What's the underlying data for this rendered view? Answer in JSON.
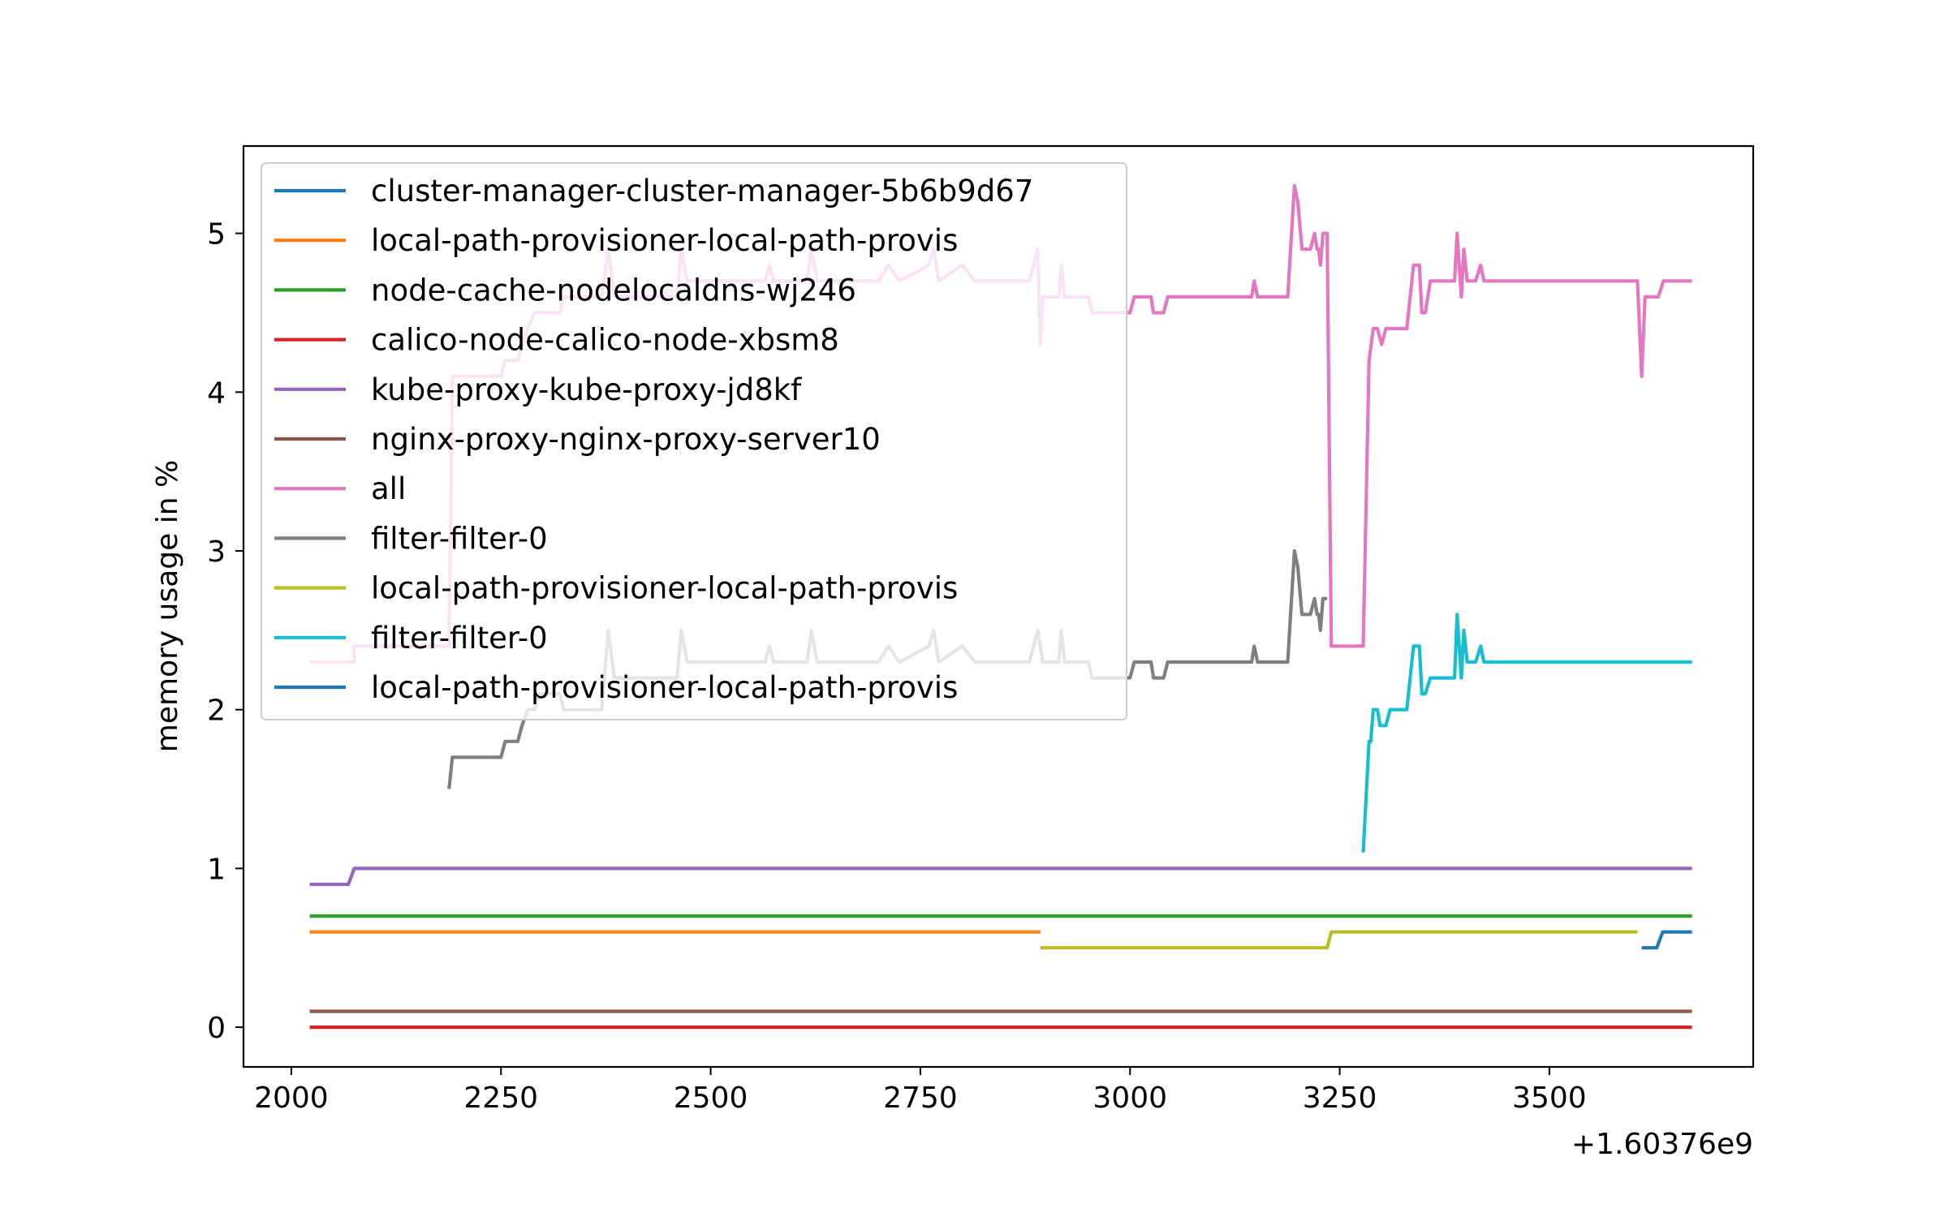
{
  "chart_data": {
    "type": "line",
    "title": "",
    "xlabel": "",
    "ylabel": "memory usage in %",
    "x_offset_label": "+1.60376e9",
    "xlim": [
      1943,
      3743
    ],
    "ylim": [
      -0.25,
      5.55
    ],
    "x_ticks": [
      {
        "value": 2000,
        "label": "2000"
      },
      {
        "value": 2250,
        "label": "2250"
      },
      {
        "value": 2500,
        "label": "2500"
      },
      {
        "value": 2750,
        "label": "2750"
      },
      {
        "value": 3000,
        "label": "3000"
      },
      {
        "value": 3250,
        "label": "3250"
      },
      {
        "value": 3500,
        "label": "3500"
      }
    ],
    "y_ticks": [
      {
        "value": 0,
        "label": "0"
      },
      {
        "value": 1,
        "label": "1"
      },
      {
        "value": 2,
        "label": "2"
      },
      {
        "value": 3,
        "label": "3"
      },
      {
        "value": 4,
        "label": "4"
      },
      {
        "value": 5,
        "label": "5"
      }
    ],
    "grid": false,
    "legend_position": "upper-left",
    "series": [
      {
        "name": "cluster-manager-cluster-manager-5b6b9d67",
        "color": "#1f77b4",
        "points": []
      },
      {
        "name": "local-path-provisioner-local-path-provis",
        "color": "#ff7f0e",
        "points": [
          [
            2022,
            0.6
          ],
          [
            2893,
            0.6
          ]
        ]
      },
      {
        "name": "node-cache-nodelocaldns-wj246",
        "color": "#2ca02c",
        "points": [
          [
            2022,
            0.7
          ],
          [
            3670,
            0.7
          ]
        ]
      },
      {
        "name": "calico-node-calico-node-xbsm8",
        "color": "#d62728",
        "points": [
          [
            2022,
            0.0
          ],
          [
            3670,
            0.0
          ]
        ]
      },
      {
        "name": "kube-proxy-kube-proxy-jd8kf",
        "color": "#9467bd",
        "points": [
          [
            2022,
            0.9
          ],
          [
            2068,
            0.9
          ],
          [
            2075,
            1.0
          ],
          [
            3670,
            1.0
          ]
        ]
      },
      {
        "name": "nginx-proxy-nginx-proxy-server10",
        "color": "#8c564b",
        "points": [
          [
            2022,
            0.1
          ],
          [
            3670,
            0.1
          ]
        ]
      },
      {
        "name": "all",
        "color": "#e377c2",
        "points": [
          [
            2022,
            2.3
          ],
          [
            2075,
            2.3
          ],
          [
            2075,
            2.4
          ],
          [
            2188,
            2.4
          ],
          [
            2192,
            4.1
          ],
          [
            2250,
            4.1
          ],
          [
            2255,
            4.2
          ],
          [
            2270,
            4.2
          ],
          [
            2275,
            4.3
          ],
          [
            2282,
            4.4
          ],
          [
            2290,
            4.5
          ],
          [
            2320,
            4.5
          ],
          [
            2325,
            4.6
          ],
          [
            2370,
            4.6
          ],
          [
            2378,
            4.9
          ],
          [
            2385,
            4.6
          ],
          [
            2460,
            4.6
          ],
          [
            2465,
            4.9
          ],
          [
            2472,
            4.7
          ],
          [
            2565,
            4.7
          ],
          [
            2570,
            4.8
          ],
          [
            2575,
            4.7
          ],
          [
            2615,
            4.7
          ],
          [
            2620,
            4.9
          ],
          [
            2627,
            4.7
          ],
          [
            2700,
            4.7
          ],
          [
            2712,
            4.8
          ],
          [
            2725,
            4.7
          ],
          [
            2760,
            4.8
          ],
          [
            2766,
            4.9
          ],
          [
            2772,
            4.7
          ],
          [
            2800,
            4.8
          ],
          [
            2815,
            4.7
          ],
          [
            2880,
            4.7
          ],
          [
            2890,
            4.9
          ],
          [
            2893,
            4.3
          ],
          [
            2896,
            4.6
          ],
          [
            2915,
            4.6
          ],
          [
            2918,
            4.8
          ],
          [
            2922,
            4.6
          ],
          [
            2950,
            4.6
          ],
          [
            2955,
            4.5
          ],
          [
            3000,
            4.5
          ],
          [
            3005,
            4.6
          ],
          [
            3025,
            4.6
          ],
          [
            3028,
            4.5
          ],
          [
            3040,
            4.5
          ],
          [
            3045,
            4.6
          ],
          [
            3145,
            4.6
          ],
          [
            3148,
            4.7
          ],
          [
            3152,
            4.6
          ],
          [
            3188,
            4.6
          ],
          [
            3196,
            5.3
          ],
          [
            3200,
            5.2
          ],
          [
            3205,
            4.9
          ],
          [
            3215,
            4.9
          ],
          [
            3220,
            5.0
          ],
          [
            3223,
            4.9
          ],
          [
            3225,
            4.9
          ],
          [
            3227,
            4.8
          ],
          [
            3230,
            5.0
          ],
          [
            3235,
            5.0
          ],
          [
            3240,
            2.4
          ],
          [
            3275,
            2.4
          ],
          [
            3278,
            2.4
          ],
          [
            3285,
            4.2
          ],
          [
            3290,
            4.4
          ],
          [
            3295,
            4.4
          ],
          [
            3300,
            4.3
          ],
          [
            3305,
            4.4
          ],
          [
            3330,
            4.4
          ],
          [
            3338,
            4.8
          ],
          [
            3345,
            4.8
          ],
          [
            3348,
            4.5
          ],
          [
            3352,
            4.5
          ],
          [
            3358,
            4.7
          ],
          [
            3362,
            4.7
          ],
          [
            3387,
            4.7
          ],
          [
            3390,
            5.0
          ],
          [
            3395,
            4.6
          ],
          [
            3398,
            4.9
          ],
          [
            3402,
            4.7
          ],
          [
            3412,
            4.7
          ],
          [
            3418,
            4.8
          ],
          [
            3422,
            4.7
          ],
          [
            3605,
            4.7
          ],
          [
            3610,
            4.1
          ],
          [
            3614,
            4.6
          ],
          [
            3630,
            4.6
          ],
          [
            3636,
            4.7
          ],
          [
            3670,
            4.7
          ]
        ]
      },
      {
        "name": "filter-filter-0",
        "color": "#7f7f7f",
        "points": [
          [
            2188,
            1.5
          ],
          [
            2192,
            1.7
          ],
          [
            2250,
            1.7
          ],
          [
            2255,
            1.8
          ],
          [
            2270,
            1.8
          ],
          [
            2275,
            1.9
          ],
          [
            2282,
            2.0
          ],
          [
            2290,
            2.0
          ],
          [
            2295,
            2.1
          ],
          [
            2320,
            2.1
          ],
          [
            2325,
            2.0
          ],
          [
            2370,
            2.0
          ],
          [
            2378,
            2.5
          ],
          [
            2385,
            2.2
          ],
          [
            2460,
            2.2
          ],
          [
            2465,
            2.5
          ],
          [
            2472,
            2.3
          ],
          [
            2565,
            2.3
          ],
          [
            2570,
            2.4
          ],
          [
            2575,
            2.3
          ],
          [
            2615,
            2.3
          ],
          [
            2620,
            2.5
          ],
          [
            2627,
            2.3
          ],
          [
            2700,
            2.3
          ],
          [
            2712,
            2.4
          ],
          [
            2725,
            2.3
          ],
          [
            2760,
            2.4
          ],
          [
            2766,
            2.5
          ],
          [
            2772,
            2.3
          ],
          [
            2800,
            2.4
          ],
          [
            2815,
            2.3
          ],
          [
            2880,
            2.3
          ],
          [
            2890,
            2.5
          ],
          [
            2896,
            2.3
          ],
          [
            2915,
            2.3
          ],
          [
            2918,
            2.5
          ],
          [
            2922,
            2.3
          ],
          [
            2950,
            2.3
          ],
          [
            2955,
            2.2
          ],
          [
            3000,
            2.2
          ],
          [
            3005,
            2.3
          ],
          [
            3025,
            2.3
          ],
          [
            3028,
            2.2
          ],
          [
            3040,
            2.2
          ],
          [
            3045,
            2.3
          ],
          [
            3145,
            2.3
          ],
          [
            3148,
            2.4
          ],
          [
            3152,
            2.3
          ],
          [
            3188,
            2.3
          ],
          [
            3196,
            3.0
          ],
          [
            3200,
            2.9
          ],
          [
            3205,
            2.6
          ],
          [
            3215,
            2.6
          ],
          [
            3220,
            2.7
          ],
          [
            3223,
            2.6
          ],
          [
            3225,
            2.6
          ],
          [
            3227,
            2.5
          ],
          [
            3230,
            2.7
          ],
          [
            3235,
            2.7
          ]
        ]
      },
      {
        "name": "local-path-provisioner-local-path-provis",
        "color": "#bcbd22",
        "points": [
          [
            2893,
            0.5
          ],
          [
            3235,
            0.5
          ],
          [
            3240,
            0.6
          ],
          [
            3605,
            0.6
          ]
        ]
      },
      {
        "name": "filter-filter-0",
        "color": "#17becf",
        "points": [
          [
            3278,
            1.1
          ],
          [
            3285,
            1.8
          ],
          [
            3287,
            1.8
          ],
          [
            3290,
            2.0
          ],
          [
            3295,
            2.0
          ],
          [
            3298,
            1.9
          ],
          [
            3305,
            1.9
          ],
          [
            3310,
            2.0
          ],
          [
            3330,
            2.0
          ],
          [
            3338,
            2.4
          ],
          [
            3345,
            2.4
          ],
          [
            3348,
            2.1
          ],
          [
            3352,
            2.1
          ],
          [
            3358,
            2.2
          ],
          [
            3362,
            2.2
          ],
          [
            3387,
            2.2
          ],
          [
            3390,
            2.6
          ],
          [
            3395,
            2.2
          ],
          [
            3398,
            2.5
          ],
          [
            3402,
            2.3
          ],
          [
            3412,
            2.3
          ],
          [
            3418,
            2.4
          ],
          [
            3422,
            2.3
          ],
          [
            3670,
            2.3
          ]
        ]
      },
      {
        "name": "local-path-provisioner-local-path-provis",
        "color": "#1f77b4",
        "points": [
          [
            3610,
            0.5
          ],
          [
            3628,
            0.5
          ],
          [
            3635,
            0.6
          ],
          [
            3670,
            0.6
          ]
        ]
      }
    ]
  }
}
